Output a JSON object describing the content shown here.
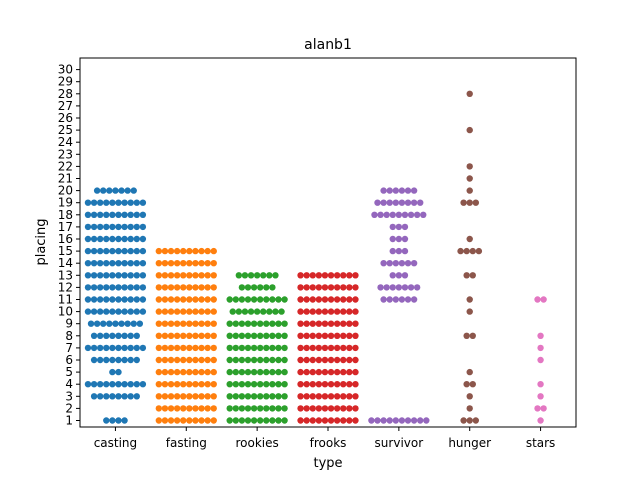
{
  "chart_data": {
    "type": "scatter",
    "title": "alanb1",
    "xlabel": "type",
    "ylabel": "placing",
    "categories": [
      "casting",
      "fasting",
      "rookies",
      "frooks",
      "survivor",
      "hunger",
      "stars"
    ],
    "yticks": [
      "1",
      "2",
      "3",
      "4",
      "5",
      "6",
      "7",
      "8",
      "9",
      "10",
      "11",
      "12",
      "13",
      "14",
      "15",
      "16",
      "17",
      "18",
      "19",
      "20",
      "21",
      "22",
      "23",
      "24",
      "25",
      "26",
      "27",
      "28",
      "29",
      "30"
    ],
    "ylim": [
      0,
      30
    ],
    "grid": false,
    "legend": "none",
    "series": [
      {
        "color": "#1f77b4",
        "counts": {
          "1": 4,
          "2": 0,
          "3": 8,
          "4": 10,
          "5": 2,
          "6": 8,
          "7": 10,
          "8": 8,
          "9": 9,
          "10": 10,
          "11": 10,
          "12": 10,
          "13": 10,
          "14": 10,
          "15": 10,
          "16": 10,
          "17": 10,
          "18": 10,
          "19": 10,
          "20": 7
        }
      },
      {
        "color": "#ff7f0e",
        "counts": {
          "1": 10,
          "2": 10,
          "3": 10,
          "4": 10,
          "5": 10,
          "6": 10,
          "7": 10,
          "8": 10,
          "9": 10,
          "10": 10,
          "11": 10,
          "12": 10,
          "13": 10,
          "14": 10,
          "15": 10
        }
      },
      {
        "color": "#2ca02c",
        "counts": {
          "1": 10,
          "2": 10,
          "3": 10,
          "4": 10,
          "5": 10,
          "6": 10,
          "7": 10,
          "8": 10,
          "9": 10,
          "10": 9,
          "11": 10,
          "12": 6,
          "13": 7
        }
      },
      {
        "color": "#d62728",
        "counts": {
          "1": 10,
          "2": 10,
          "3": 10,
          "4": 10,
          "5": 10,
          "6": 10,
          "7": 10,
          "8": 10,
          "9": 10,
          "10": 10,
          "11": 10,
          "12": 10,
          "13": 10
        }
      },
      {
        "color": "#9467bd",
        "counts": {
          "1": 10,
          "11": 6,
          "12": 7,
          "13": 3,
          "14": 6,
          "15": 3,
          "16": 3,
          "17": 3,
          "18": 9,
          "19": 8,
          "20": 6
        }
      },
      {
        "color": "#8c564b",
        "counts": {
          "1": 3,
          "2": 1,
          "3": 1,
          "4": 2,
          "5": 1,
          "8": 2,
          "10": 1,
          "11": 1,
          "13": 2,
          "15": 4,
          "16": 1,
          "19": 3,
          "20": 1,
          "21": 1,
          "22": 1,
          "25": 1,
          "28": 1
        }
      },
      {
        "color": "#e377c2",
        "counts": {
          "1": 1,
          "2": 2,
          "3": 1,
          "4": 1,
          "6": 1,
          "7": 1,
          "8": 1,
          "11": 2
        }
      }
    ]
  }
}
